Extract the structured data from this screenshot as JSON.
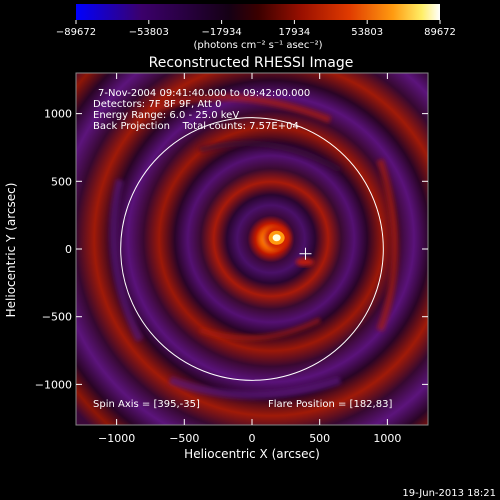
{
  "chart_data": {
    "type": "heatmap",
    "title": "Reconstructed RHESSI Image",
    "xlabel": "Heliocentric X (arcsec)",
    "ylabel": "Heliocentric Y (arcsec)",
    "xlim": [
      -1300,
      1300
    ],
    "ylim": [
      -1300,
      1300
    ],
    "xticks": [
      -1000,
      -500,
      0,
      500,
      1000
    ],
    "yticks": [
      -1000,
      -500,
      0,
      500,
      1000
    ],
    "xtick_labels": [
      "−1000",
      "−500",
      "0",
      "500",
      "1000"
    ],
    "ytick_labels": [
      "−1000",
      "−500",
      "0",
      "500",
      "1000"
    ],
    "colorbar": {
      "ticks": [
        -89672,
        -53803,
        -17934,
        17934,
        53803,
        89672
      ],
      "tick_labels": [
        "−89672",
        "−53803",
        "−17934",
        "17934",
        "53803",
        "89672"
      ],
      "unit_label": "(photons cm⁻² s⁻¹ asec⁻²)",
      "colors": [
        "#0000ff",
        "#3b006b",
        "#150015",
        "#5a0000",
        "#cc2a00",
        "#ff8800",
        "#ffee55",
        "#ffffff"
      ]
    },
    "info_lines": [
      "7-Nov-2004 09:41:40.000 to 09:42:00.000",
      "Detectors: 7F 8F 9F, Att 0",
      "Energy Range: 6.0 - 25.0 keV",
      "Back Projection    Total counts: 7.57E+04"
    ],
    "spin_axis_text": "Spin Axis = [395,-35]",
    "flare_position_text": "Flare Position = [182,83]",
    "spin_axis": [
      395,
      -35
    ],
    "flare_position": [
      182,
      83
    ],
    "solar_limb_radius": 970,
    "footer_date": "19-Jun-2013 18:21"
  }
}
